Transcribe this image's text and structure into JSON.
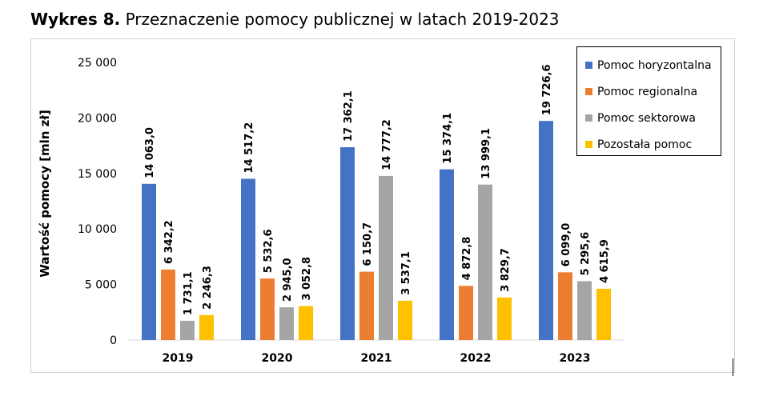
{
  "figure": {
    "title_prefix": "Wykres 8.",
    "title_text": "Przeznaczenie pomocy publicznej w latach 2019-2023"
  },
  "chart_data": {
    "type": "bar",
    "categories": [
      "2019",
      "2020",
      "2021",
      "2022",
      "2023"
    ],
    "series": [
      {
        "name": "Pomoc horyzontalna",
        "color": "#4472C4",
        "values": [
          14063.0,
          14517.2,
          17362.1,
          15374.1,
          19726.6
        ],
        "labels": [
          "14 063,0",
          "14 517,2",
          "17 362,1",
          "15 374,1",
          "19 726,6"
        ]
      },
      {
        "name": "Pomoc regionalna",
        "color": "#ED7D31",
        "values": [
          6342.2,
          5532.6,
          6150.7,
          4872.8,
          6099.0
        ],
        "labels": [
          "6 342,2",
          "5 532,6",
          "6 150,7",
          "4 872,8",
          "6 099,0"
        ]
      },
      {
        "name": "Pomoc sektorowa",
        "color": "#A5A5A5",
        "values": [
          1731.1,
          2945.0,
          14777.2,
          13999.1,
          5295.6
        ],
        "labels": [
          "1 731,1",
          "2 945,0",
          "14 777,2",
          "13 999,1",
          "5 295,6"
        ]
      },
      {
        "name": "Pozostała pomoc",
        "color": "#FFC000",
        "values": [
          2246.3,
          3052.8,
          3537.1,
          3829.7,
          4615.9
        ],
        "labels": [
          "2 246,3",
          "3 052,8",
          "3 537,1",
          "3 829,7",
          "4 615,9"
        ]
      }
    ],
    "ylabel": "Wartość pomocy [mln zł]",
    "xlabel": "",
    "ylim": [
      0,
      25000
    ],
    "yticks": [
      0,
      5000,
      10000,
      15000,
      20000,
      25000
    ],
    "ytick_labels": [
      "0",
      "5 000",
      "10 000",
      "15 000",
      "20 000",
      "25 000"
    ],
    "grid": false,
    "legend": "top-right"
  }
}
